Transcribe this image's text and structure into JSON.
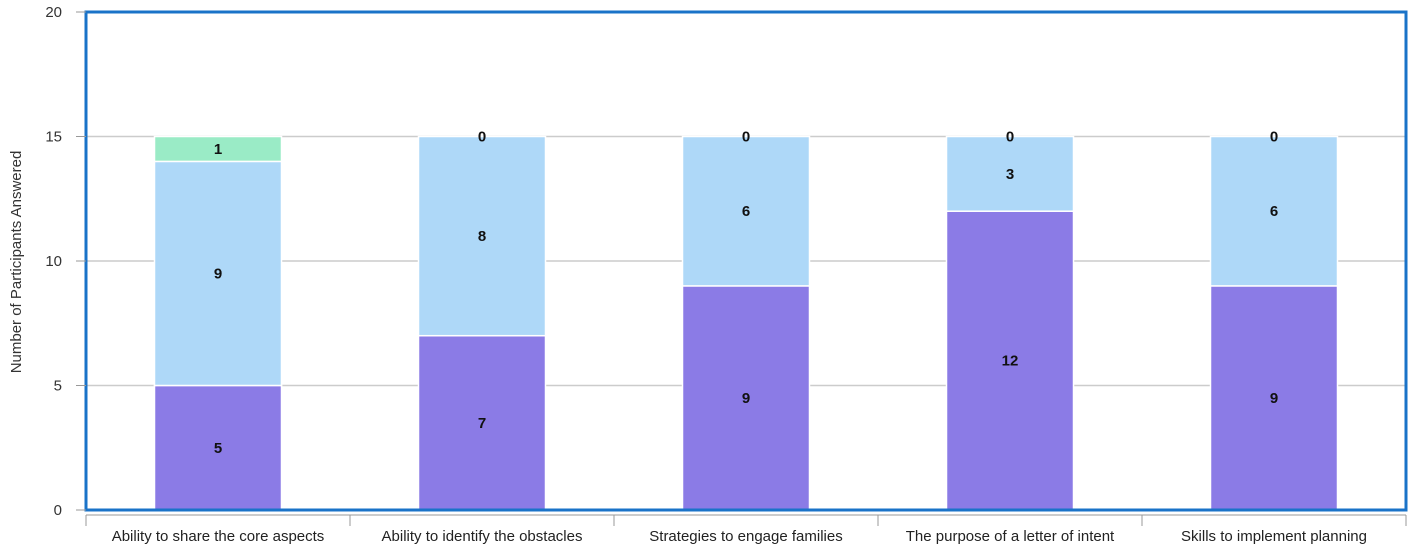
{
  "chart_data": {
    "type": "bar",
    "stacked": true,
    "title": "",
    "xlabel": "",
    "ylabel": "Number of Participants Answered",
    "ylim": [
      0,
      20
    ],
    "yticks": [
      "0",
      "5",
      "10",
      "15",
      "20"
    ],
    "grid": true,
    "categories": [
      "Ability to share the core aspects",
      "Ability to identify the obstacles",
      "Strategies to engage families",
      "The purpose of a letter of intent",
      "Skills to implement planning"
    ],
    "series": [
      {
        "color": "#8b7be6",
        "values": [
          5,
          7,
          9,
          12,
          9
        ]
      },
      {
        "color": "#aed8f8",
        "values": [
          9,
          8,
          6,
          3,
          6
        ]
      },
      {
        "color": "#9aebc6",
        "values": [
          1,
          0,
          0,
          0,
          0
        ]
      }
    ]
  },
  "colors": {
    "frame": "#1a73c8",
    "grid": "#cccccc"
  }
}
